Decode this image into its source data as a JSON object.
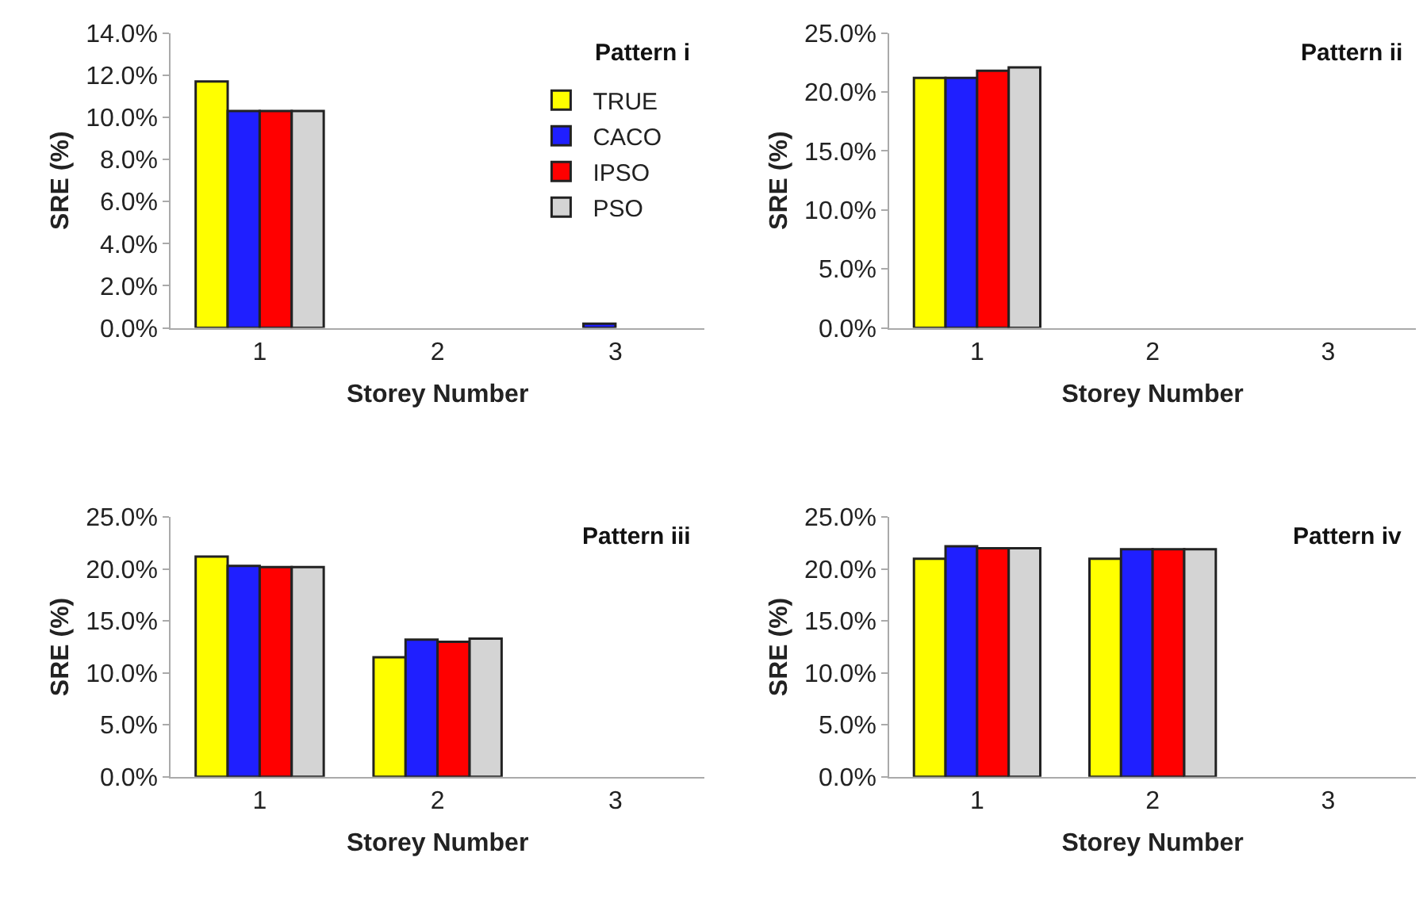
{
  "chart_data": [
    {
      "type": "bar",
      "title": "Pattern i",
      "xlabel": "Storey Number",
      "ylabel": "SRE (%)",
      "categories": [
        "1",
        "2",
        "3"
      ],
      "series": [
        {
          "name": "TRUE",
          "color": "#ffff00",
          "values": [
            11.7,
            null,
            null
          ]
        },
        {
          "name": "CACO",
          "color": "#1f1fff",
          "values": [
            10.3,
            null,
            0.2
          ]
        },
        {
          "name": "IPSO",
          "color": "#ff0000",
          "values": [
            10.3,
            null,
            null
          ]
        },
        {
          "name": "PSO",
          "color": "#d4d4d4",
          "values": [
            10.3,
            null,
            null
          ]
        }
      ],
      "ylim": [
        0,
        14
      ],
      "yticks": [
        {
          "value": 0,
          "label": "0.0%"
        },
        {
          "value": 2,
          "label": "2.0%"
        },
        {
          "value": 4,
          "label": "4.0%"
        },
        {
          "value": 6,
          "label": "6.0%"
        },
        {
          "value": 8,
          "label": "8.0%"
        },
        {
          "value": 10,
          "label": "10.0%"
        },
        {
          "value": 12,
          "label": "12.0%"
        },
        {
          "value": 14,
          "label": "14.0%"
        }
      ],
      "legend": "top right"
    },
    {
      "type": "bar",
      "title": "Pattern ii",
      "xlabel": "Storey Number",
      "ylabel": "SRE (%)",
      "categories": [
        "1",
        "2",
        "3"
      ],
      "series": [
        {
          "color": "#ffff00",
          "values": [
            21.2,
            null,
            null
          ]
        },
        {
          "color": "#1f1fff",
          "values": [
            21.2,
            null,
            null
          ]
        },
        {
          "color": "#ff0000",
          "values": [
            21.8,
            null,
            null
          ]
        },
        {
          "color": "#d4d4d4",
          "values": [
            22.1,
            null,
            null
          ]
        }
      ],
      "ylim": [
        0,
        25
      ],
      "yticks": [
        {
          "value": 0,
          "label": "0.0%"
        },
        {
          "value": 5,
          "label": "5.0%"
        },
        {
          "value": 10,
          "label": "10.0%"
        },
        {
          "value": 15,
          "label": "15.0%"
        },
        {
          "value": 20,
          "label": "20.0%"
        },
        {
          "value": 25,
          "label": "25.0%"
        }
      ]
    },
    {
      "type": "bar",
      "title": "Pattern iii",
      "xlabel": "Storey Number",
      "ylabel": "SRE (%)",
      "categories": [
        "1",
        "2",
        "3"
      ],
      "series": [
        {
          "color": "#ffff00",
          "values": [
            21.2,
            11.5,
            null
          ]
        },
        {
          "color": "#1f1fff",
          "values": [
            20.3,
            13.2,
            null
          ]
        },
        {
          "color": "#ff0000",
          "values": [
            20.2,
            13.0,
            null
          ]
        },
        {
          "color": "#d4d4d4",
          "values": [
            20.2,
            13.3,
            null
          ]
        }
      ],
      "ylim": [
        0,
        25
      ],
      "yticks": [
        {
          "value": 0,
          "label": "0.0%"
        },
        {
          "value": 5,
          "label": "5.0%"
        },
        {
          "value": 10,
          "label": "10.0%"
        },
        {
          "value": 15,
          "label": "15.0%"
        },
        {
          "value": 20,
          "label": "20.0%"
        },
        {
          "value": 25,
          "label": "25.0%"
        }
      ]
    },
    {
      "type": "bar",
      "title": "Pattern iv",
      "xlabel": "Storey Number",
      "ylabel": "SRE (%)",
      "categories": [
        "1",
        "2",
        "3"
      ],
      "series": [
        {
          "color": "#ffff00",
          "values": [
            21.0,
            21.0,
            null
          ]
        },
        {
          "color": "#1f1fff",
          "values": [
            22.2,
            21.9,
            null
          ]
        },
        {
          "color": "#ff0000",
          "values": [
            22.0,
            21.9,
            null
          ]
        },
        {
          "color": "#d4d4d4",
          "values": [
            22.0,
            21.9,
            null
          ]
        }
      ],
      "ylim": [
        0,
        25
      ],
      "yticks": [
        {
          "value": 0,
          "label": "0.0%"
        },
        {
          "value": 5,
          "label": "5.0%"
        },
        {
          "value": 10,
          "label": "10.0%"
        },
        {
          "value": 15,
          "label": "15.0%"
        },
        {
          "value": 20,
          "label": "20.0%"
        },
        {
          "value": 25,
          "label": "25.0%"
        }
      ]
    }
  ]
}
